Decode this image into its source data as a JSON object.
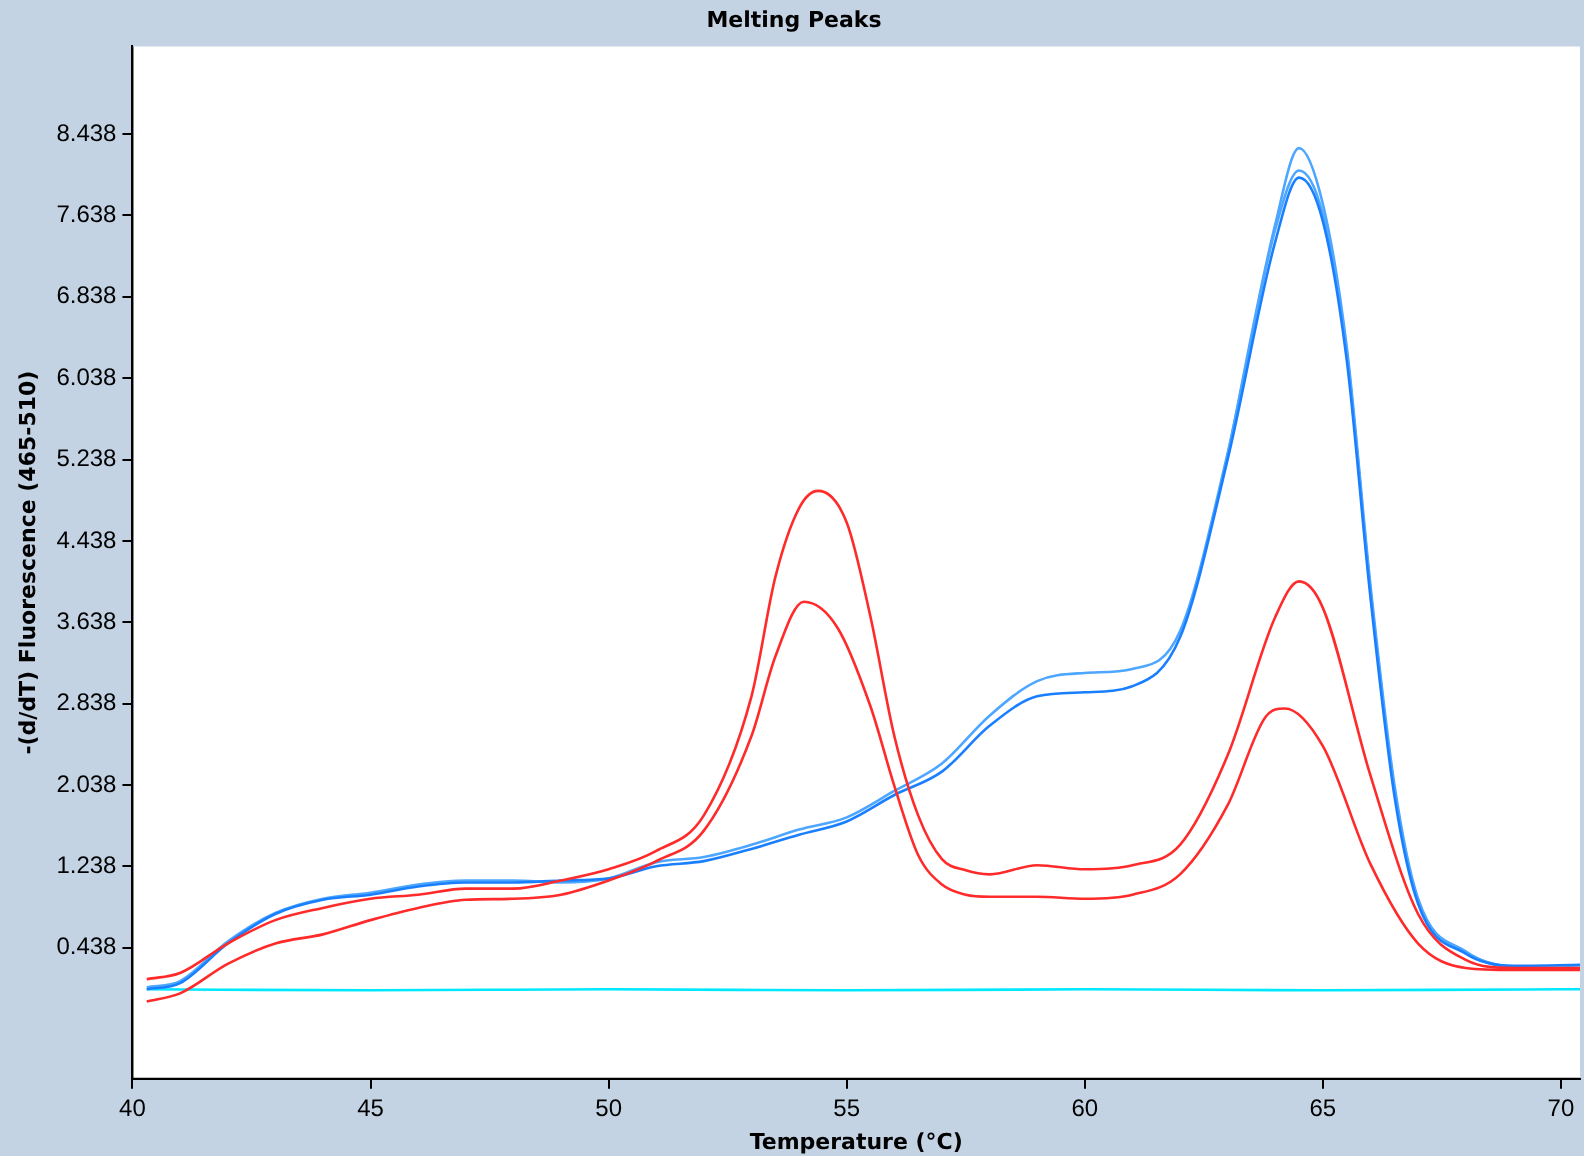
{
  "chart_data": {
    "type": "line",
    "title": "Melting Peaks",
    "xlabel": "Temperature (°C)",
    "ylabel": "-(d/dT) Fluorescence (465-510)",
    "xlim": [
      40,
      70.4
    ],
    "xticks": [
      40,
      45,
      50,
      55,
      60,
      65,
      70
    ],
    "ylim": [
      -0.85,
      9.3
    ],
    "yticks": [
      0.438,
      1.238,
      2.038,
      2.838,
      3.638,
      4.438,
      5.238,
      6.038,
      6.838,
      7.638,
      8.438
    ],
    "grid": false,
    "legend": false,
    "marker": "none",
    "line_style": "solid",
    "series": [
      {
        "color": "#ff2a2a",
        "x": [
          40.3,
          41,
          42,
          43,
          44,
          45,
          46,
          47,
          48,
          49,
          50,
          51,
          52,
          53,
          53.5,
          54,
          54.4,
          55,
          55.5,
          56,
          56.5,
          57,
          57.5,
          58,
          59,
          60,
          61,
          62,
          63,
          64,
          64.5,
          65,
          66,
          67,
          68,
          69,
          70,
          70.4
        ],
        "values": [
          0.13,
          0.19,
          0.48,
          0.71,
          0.83,
          0.92,
          0.96,
          1.02,
          1.02,
          1.1,
          1.21,
          1.39,
          1.74,
          2.91,
          4.08,
          4.76,
          4.93,
          4.62,
          3.69,
          2.52,
          1.74,
          1.31,
          1.2,
          1.16,
          1.25,
          1.21,
          1.25,
          1.45,
          2.33,
          3.69,
          4.04,
          3.78,
          2.13,
          0.77,
          0.32,
          0.24,
          0.24,
          0.24
        ]
      },
      {
        "color": "#ff2a2a",
        "x": [
          40.3,
          41,
          42,
          43,
          44,
          45,
          46,
          47,
          48,
          49,
          50,
          51,
          52,
          53,
          53.5,
          54.1,
          54.8,
          55.5,
          56,
          56.5,
          57,
          57.5,
          58,
          59,
          60,
          61,
          62,
          63,
          63.8,
          64.2,
          65,
          66,
          67,
          68,
          69,
          70.4
        ],
        "values": [
          -0.09,
          -0.01,
          0.28,
          0.48,
          0.57,
          0.71,
          0.83,
          0.91,
          0.92,
          0.96,
          1.1,
          1.29,
          1.59,
          2.52,
          3.3,
          3.84,
          3.59,
          2.81,
          2.03,
          1.35,
          1.06,
          0.96,
          0.94,
          0.94,
          0.92,
          0.96,
          1.16,
          1.84,
          2.71,
          2.79,
          2.42,
          1.26,
          0.48,
          0.24,
          0.22,
          0.22
        ]
      },
      {
        "color": "#1a7fff",
        "x": [
          40.3,
          41,
          42,
          43,
          44,
          45,
          46,
          47,
          48,
          49,
          50,
          51,
          52,
          53,
          54,
          55,
          56,
          57,
          58,
          59,
          60,
          61,
          62,
          63,
          64,
          64.5,
          65,
          65.5,
          66,
          66.5,
          67,
          68,
          69,
          70.4
        ],
        "values": [
          0.03,
          0.09,
          0.48,
          0.77,
          0.91,
          0.96,
          1.04,
          1.08,
          1.08,
          1.1,
          1.12,
          1.24,
          1.29,
          1.41,
          1.55,
          1.68,
          1.94,
          2.17,
          2.62,
          2.91,
          2.95,
          3.01,
          3.49,
          5.24,
          7.38,
          8.01,
          7.58,
          6.22,
          3.88,
          1.94,
          0.87,
          0.38,
          0.26,
          0.27
        ]
      },
      {
        "color": "#4da6ff",
        "x": [
          40.3,
          41,
          42,
          43,
          44,
          45,
          46,
          47,
          48,
          49,
          50,
          51,
          52,
          53,
          54,
          55,
          56,
          57,
          58,
          59,
          60,
          61,
          62,
          63,
          64,
          64.5,
          65,
          65.5,
          66,
          66.5,
          67,
          68,
          69,
          70.4
        ],
        "values": [
          0.05,
          0.11,
          0.5,
          0.78,
          0.92,
          0.98,
          1.06,
          1.1,
          1.1,
          1.08,
          1.12,
          1.28,
          1.33,
          1.45,
          1.6,
          1.72,
          1.98,
          2.25,
          2.72,
          3.06,
          3.14,
          3.18,
          3.55,
          5.3,
          7.5,
          8.08,
          7.65,
          6.3,
          3.95,
          2,
          0.9,
          0.4,
          0.25,
          0.24
        ]
      },
      {
        "color": "#4da6ff",
        "x": [
          63,
          64,
          64.5,
          65,
          65.5,
          66,
          66.5,
          67,
          68,
          69,
          70.4
        ],
        "values": [
          5.28,
          7.55,
          8.3,
          7.75,
          6.35,
          4.0,
          2.05,
          0.92,
          0.4,
          0.25,
          0.24
        ]
      },
      {
        "color": "#00e8ff",
        "x": [
          40.3,
          45,
          50,
          55,
          60,
          65,
          70,
          70.4
        ],
        "values": [
          0.03,
          0.02,
          0.03,
          0.02,
          0.03,
          0.02,
          0.03,
          0.03
        ]
      }
    ]
  }
}
